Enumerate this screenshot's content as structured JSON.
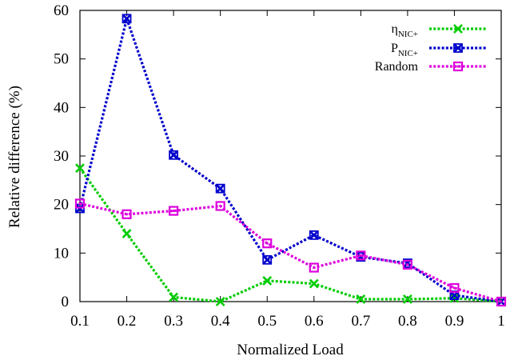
{
  "chart_data": {
    "type": "line",
    "xlabel": "Normalized Load",
    "ylabel": "Relative difference (%)",
    "xlim": [
      0.1,
      1
    ],
    "ylim": [
      0,
      60
    ],
    "x_ticks": [
      "0.1",
      "0.2",
      "0.3",
      "0.4",
      "0.5",
      "0.6",
      "0.7",
      "0.8",
      "0.9",
      "1"
    ],
    "y_ticks": [
      "0",
      "10",
      "20",
      "30",
      "40",
      "50",
      "60"
    ],
    "grid": false,
    "legend_position": "top-right",
    "x": [
      0.1,
      0.2,
      0.3,
      0.4,
      0.5,
      0.6,
      0.7,
      0.8,
      0.9,
      1.0
    ],
    "series": [
      {
        "name_main": "η",
        "name_sub": "NIC+",
        "color": "#00cc00",
        "marker": "x",
        "values": [
          27.5,
          14.0,
          0.9,
          0.0,
          4.3,
          3.7,
          0.5,
          0.5,
          0.7,
          0.0
        ]
      },
      {
        "name_main": "P",
        "name_sub": "NIC+",
        "color": "#0000cc",
        "marker": "xsquare",
        "values": [
          19.2,
          58.3,
          30.2,
          23.3,
          8.6,
          13.7,
          9.2,
          7.9,
          1.3,
          0.0
        ]
      },
      {
        "name_main": "Random",
        "name_sub": "",
        "color": "#dd00dd",
        "marker": "square",
        "values": [
          20.2,
          18.0,
          18.7,
          19.7,
          12.0,
          7.0,
          9.5,
          7.6,
          2.8,
          0.0
        ]
      }
    ]
  }
}
